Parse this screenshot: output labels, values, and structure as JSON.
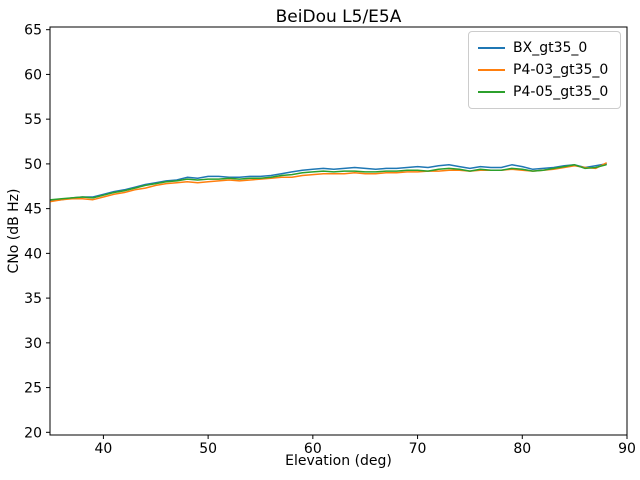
{
  "chart_data": {
    "type": "line",
    "title": "BeiDou L5/E5A",
    "xlabel": "Elevation (deg)",
    "ylabel": "CNo (dB Hz)",
    "xlim": [
      34.9,
      90
    ],
    "ylim": [
      19.7,
      65.3
    ],
    "xticks": [
      40,
      50,
      60,
      70,
      80,
      90
    ],
    "yticks": [
      20,
      25,
      30,
      35,
      40,
      45,
      50,
      55,
      60,
      65
    ],
    "grid": false,
    "legend_position": "upper right",
    "axis_color": "#000000",
    "background_color": "#ffffff",
    "x": [
      35,
      36,
      37,
      38,
      39,
      40,
      41,
      42,
      43,
      44,
      45,
      46,
      47,
      48,
      49,
      50,
      51,
      52,
      53,
      54,
      55,
      56,
      57,
      58,
      59,
      60,
      61,
      62,
      63,
      64,
      65,
      66,
      67,
      68,
      69,
      70,
      71,
      72,
      73,
      74,
      75,
      76,
      77,
      78,
      79,
      80,
      81,
      82,
      83,
      84,
      85,
      86,
      87,
      88
    ],
    "series": [
      {
        "name": "BX_gt35_0",
        "color": "#1f77b4",
        "values": [
          45.9,
          46.0,
          46.2,
          46.3,
          46.3,
          46.6,
          46.9,
          47.1,
          47.4,
          47.7,
          47.9,
          48.1,
          48.2,
          48.5,
          48.4,
          48.6,
          48.6,
          48.5,
          48.5,
          48.6,
          48.6,
          48.7,
          48.9,
          49.1,
          49.3,
          49.4,
          49.5,
          49.4,
          49.5,
          49.6,
          49.5,
          49.4,
          49.5,
          49.5,
          49.6,
          49.7,
          49.6,
          49.8,
          49.9,
          49.7,
          49.5,
          49.7,
          49.6,
          49.6,
          49.9,
          49.7,
          49.4,
          49.5,
          49.6,
          49.8,
          49.9,
          49.6,
          49.8,
          50.0
        ]
      },
      {
        "name": "P4-03_gt35_0",
        "color": "#ff7f0e",
        "values": [
          45.8,
          46.0,
          46.1,
          46.1,
          46.0,
          46.3,
          46.6,
          46.8,
          47.1,
          47.3,
          47.6,
          47.8,
          47.9,
          48.0,
          47.9,
          48.0,
          48.1,
          48.2,
          48.1,
          48.2,
          48.3,
          48.4,
          48.5,
          48.5,
          48.7,
          48.8,
          48.9,
          48.9,
          48.9,
          49.0,
          48.9,
          48.9,
          49.0,
          49.0,
          49.1,
          49.1,
          49.2,
          49.2,
          49.3,
          49.3,
          49.2,
          49.3,
          49.3,
          49.3,
          49.4,
          49.3,
          49.2,
          49.3,
          49.4,
          49.6,
          49.8,
          49.6,
          49.5,
          50.1
        ]
      },
      {
        "name": "P4-05_gt35_0",
        "color": "#2ca02c",
        "values": [
          46.0,
          46.1,
          46.2,
          46.3,
          46.2,
          46.5,
          46.8,
          47.0,
          47.3,
          47.6,
          47.8,
          48.0,
          48.1,
          48.3,
          48.2,
          48.3,
          48.3,
          48.4,
          48.3,
          48.4,
          48.4,
          48.5,
          48.7,
          48.8,
          49.0,
          49.1,
          49.2,
          49.1,
          49.2,
          49.2,
          49.1,
          49.1,
          49.2,
          49.2,
          49.3,
          49.3,
          49.2,
          49.4,
          49.5,
          49.4,
          49.2,
          49.4,
          49.3,
          49.3,
          49.5,
          49.4,
          49.2,
          49.3,
          49.5,
          49.7,
          49.9,
          49.5,
          49.6,
          49.9
        ]
      }
    ]
  }
}
